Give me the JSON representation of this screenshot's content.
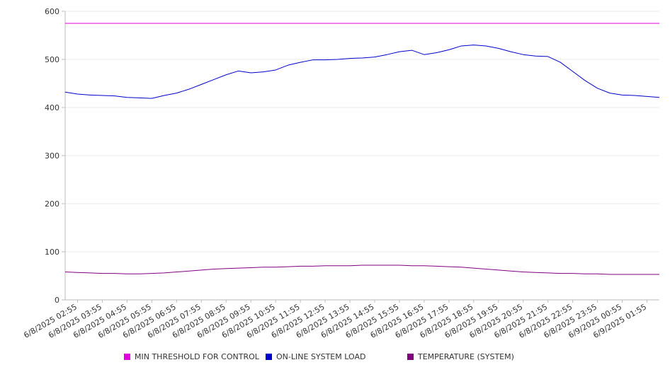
{
  "chart_data": {
    "type": "line",
    "title": "",
    "xlabel": "",
    "ylabel": "",
    "ylim": [
      0,
      600
    ],
    "yticks": [
      0,
      100,
      200,
      300,
      400,
      500,
      600
    ],
    "grid": true,
    "legend_position": "bottom",
    "x_tick_labels": [
      "6/8/2025 02:55",
      "6/8/2025 03:55",
      "6/8/2025 04:55",
      "6/8/2025 05:55",
      "6/8/2025 06:55",
      "6/8/2025 07:55",
      "6/8/2025 08:55",
      "6/8/2025 09:55",
      "6/8/2025 10:55",
      "6/8/2025 11:55",
      "6/8/2025 12:55",
      "6/8/2025 13:55",
      "6/8/2025 14:55",
      "6/8/2025 15:55",
      "6/8/2025 16:55",
      "6/8/2025 17:55",
      "6/8/2025 18:55",
      "6/8/2025 19:55",
      "6/8/2025 20:55",
      "6/8/2025 21:55",
      "6/8/2025 22:55",
      "6/8/2025 23:55",
      "6/9/2025 00:55",
      "6/9/2025 01:55"
    ],
    "x": [
      "6/8/2025 02:25",
      "6/8/2025 02:55",
      "6/8/2025 03:25",
      "6/8/2025 03:55",
      "6/8/2025 04:25",
      "6/8/2025 04:55",
      "6/8/2025 05:25",
      "6/8/2025 05:55",
      "6/8/2025 06:25",
      "6/8/2025 06:55",
      "6/8/2025 07:25",
      "6/8/2025 07:55",
      "6/8/2025 08:25",
      "6/8/2025 08:55",
      "6/8/2025 09:25",
      "6/8/2025 09:55",
      "6/8/2025 10:25",
      "6/8/2025 10:55",
      "6/8/2025 11:25",
      "6/8/2025 11:55",
      "6/8/2025 12:25",
      "6/8/2025 12:55",
      "6/8/2025 13:25",
      "6/8/2025 13:55",
      "6/8/2025 14:25",
      "6/8/2025 14:55",
      "6/8/2025 15:25",
      "6/8/2025 15:55",
      "6/8/2025 16:25",
      "6/8/2025 16:55",
      "6/8/2025 17:25",
      "6/8/2025 17:55",
      "6/8/2025 18:25",
      "6/8/2025 18:55",
      "6/8/2025 19:25",
      "6/8/2025 19:55",
      "6/8/2025 20:25",
      "6/8/2025 20:55",
      "6/8/2025 21:25",
      "6/8/2025 21:55",
      "6/8/2025 22:25",
      "6/8/2025 22:55",
      "6/8/2025 23:25",
      "6/8/2025 23:55",
      "6/9/2025 00:25",
      "6/9/2025 00:55",
      "6/9/2025 01:25",
      "6/9/2025 01:55",
      "6/9/2025 02:25"
    ],
    "series": [
      {
        "name": "MIN THRESHOLD FOR CONTROL",
        "color": "#e000e0",
        "values": [
          575,
          575,
          575,
          575,
          575,
          575,
          575,
          575,
          575,
          575,
          575,
          575,
          575,
          575,
          575,
          575,
          575,
          575,
          575,
          575,
          575,
          575,
          575,
          575,
          575,
          575,
          575,
          575,
          575,
          575,
          575,
          575,
          575,
          575,
          575,
          575,
          575,
          575,
          575,
          575,
          575,
          575,
          575,
          575,
          575,
          575,
          575,
          575,
          575
        ]
      },
      {
        "name": "ON-LINE SYSTEM LOAD",
        "color": "#0000cc",
        "values": [
          432,
          428,
          426,
          425,
          424,
          421,
          420,
          419,
          425,
          430,
          438,
          448,
          458,
          468,
          476,
          472,
          474,
          478,
          488,
          494,
          499,
          499,
          500,
          502,
          503,
          505,
          510,
          516,
          519,
          510,
          514,
          520,
          528,
          530,
          528,
          523,
          516,
          510,
          507,
          506,
          494,
          475,
          456,
          440,
          430,
          426,
          425,
          423,
          421
        ]
      },
      {
        "name": "TEMPERATURE (SYSTEM)",
        "color": "#800080",
        "values": [
          58,
          57,
          56,
          55,
          55,
          54,
          54,
          55,
          56,
          58,
          60,
          62,
          64,
          65,
          66,
          67,
          68,
          68,
          69,
          70,
          70,
          71,
          71,
          71,
          72,
          72,
          72,
          72,
          71,
          71,
          70,
          69,
          68,
          66,
          64,
          62,
          60,
          58,
          57,
          56,
          55,
          55,
          54,
          54,
          53,
          53,
          53,
          53,
          53
        ]
      }
    ]
  }
}
